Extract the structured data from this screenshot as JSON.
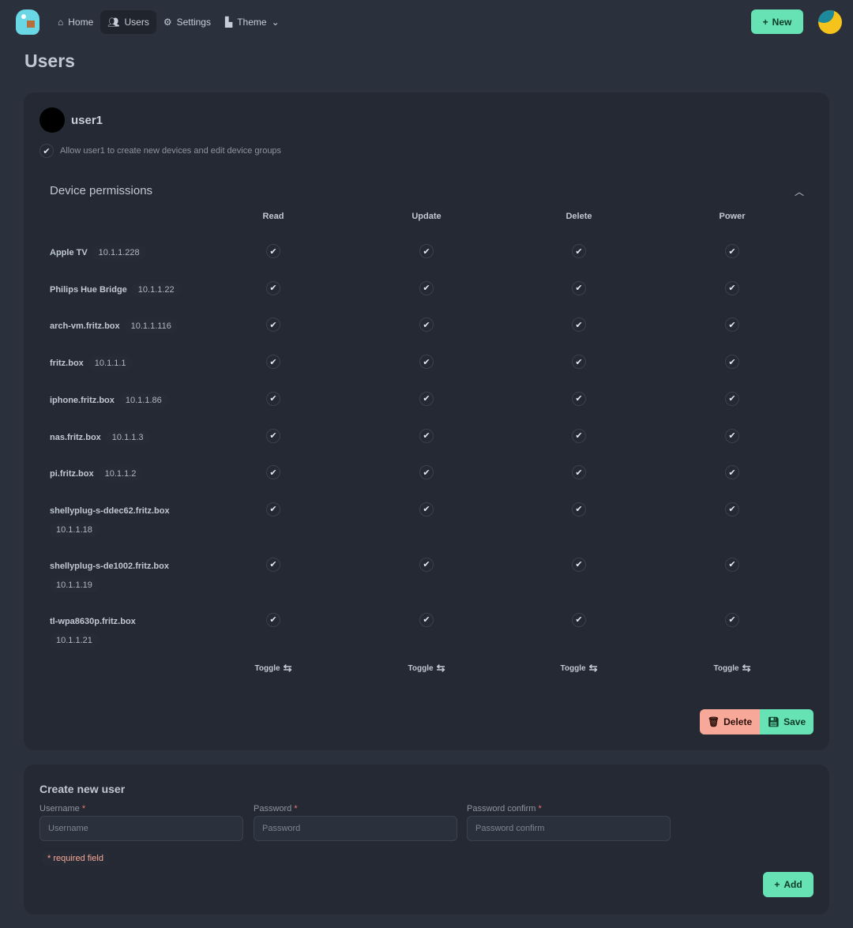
{
  "nav": {
    "items": [
      {
        "label": "Home",
        "icon": "home-icon"
      },
      {
        "label": "Users",
        "icon": "users-icon",
        "active": true
      },
      {
        "label": "Settings",
        "icon": "gear-icon"
      },
      {
        "label": "Theme",
        "icon": "palette-icon"
      }
    ],
    "new_label": "New"
  },
  "page_title": "Users",
  "user": {
    "name": "user1",
    "allow_text": "Allow user1 to create new devices and edit device groups",
    "allow_checked": true
  },
  "permissions": {
    "title": "Device permissions",
    "columns": [
      "Read",
      "Update",
      "Delete",
      "Power"
    ],
    "devices": [
      {
        "name": "Apple TV",
        "ip": "10.1.1.228",
        "perms": [
          true,
          true,
          true,
          true
        ]
      },
      {
        "name": "Philips Hue Bridge",
        "ip": "10.1.1.22",
        "perms": [
          true,
          true,
          true,
          true
        ]
      },
      {
        "name": "arch-vm.fritz.box",
        "ip": "10.1.1.116",
        "perms": [
          true,
          true,
          true,
          true
        ]
      },
      {
        "name": "fritz.box",
        "ip": "10.1.1.1",
        "perms": [
          true,
          true,
          true,
          true
        ]
      },
      {
        "name": "iphone.fritz.box",
        "ip": "10.1.1.86",
        "perms": [
          true,
          true,
          true,
          true
        ]
      },
      {
        "name": "nas.fritz.box",
        "ip": "10.1.1.3",
        "perms": [
          true,
          true,
          true,
          true
        ]
      },
      {
        "name": "pi.fritz.box",
        "ip": "10.1.1.2",
        "perms": [
          true,
          true,
          true,
          true
        ]
      },
      {
        "name": "shellyplug-s-ddec62.fritz.box",
        "ip": "10.1.1.18",
        "perms": [
          true,
          true,
          true,
          true
        ]
      },
      {
        "name": "shellyplug-s-de1002.fritz.box",
        "ip": "10.1.1.19",
        "perms": [
          true,
          true,
          true,
          true
        ]
      },
      {
        "name": "tl-wpa8630p.fritz.box",
        "ip": "10.1.1.21",
        "perms": [
          true,
          true,
          true,
          true
        ]
      }
    ],
    "toggle_label": "Toggle"
  },
  "actions": {
    "delete_label": "Delete",
    "save_label": "Save"
  },
  "create": {
    "title": "Create new user",
    "fields": [
      {
        "label": "Username",
        "placeholder": "Username"
      },
      {
        "label": "Password",
        "placeholder": "Password"
      },
      {
        "label": "Password confirm",
        "placeholder": "Password confirm"
      }
    ],
    "required_note": "* required field",
    "add_label": "Add"
  },
  "colors": {
    "accent": "#66e2b4",
    "danger": "#f8a898",
    "background": "#2a303c",
    "card": "#242933"
  }
}
